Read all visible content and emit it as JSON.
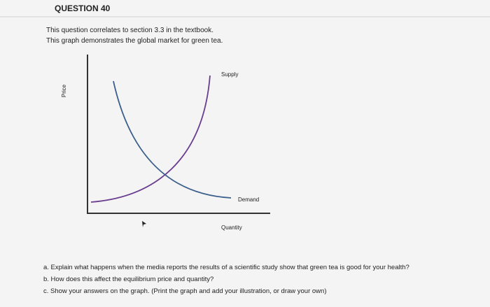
{
  "header": {
    "title": "QUESTION 40"
  },
  "intro": [
    "This question correlates to section 3.3 in the textbook.",
    "This graph demonstrates the global market for green tea."
  ],
  "graph": {
    "y_axis_label": "Price",
    "x_axis_label": "Quantity",
    "supply_label": "Supply",
    "demand_label": "Demand"
  },
  "questions": [
    "a. Explain what happens when the media reports the results of a scientific study show that green tea is good for your health?",
    "b. How does this affect the equilibrium price and quantity?",
    "c. Show your answers on the graph. (Print the graph and add your illustration, or draw your own)"
  ]
}
